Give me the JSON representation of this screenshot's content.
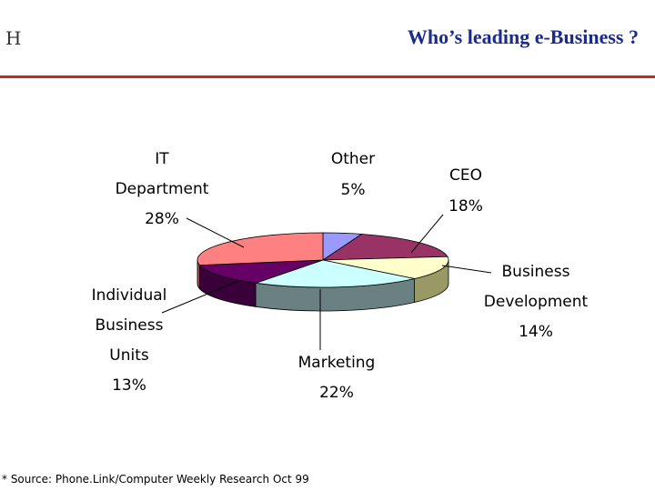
{
  "header": {
    "corner_mark": "H",
    "title": "Who’s leading e-Business ?"
  },
  "footer": {
    "source": "* Source: Phone.Link/Computer Weekly Research Oct 99"
  },
  "chart_data": {
    "type": "pie",
    "title": "Who’s leading e-Business ?",
    "slices": [
      {
        "label": "Other",
        "value": 5,
        "percent_label": "5%",
        "color": "#9999ff",
        "side": "#5c5c99"
      },
      {
        "label": "CEO",
        "value": 18,
        "percent_label": "18%",
        "color": "#993366",
        "side": "#5c1f3d"
      },
      {
        "label": "Business Development",
        "value": 14,
        "percent_label": "14%",
        "color": "#ffffcc",
        "side": "#999966"
      },
      {
        "label": "Marketing",
        "value": 22,
        "percent_label": "22%",
        "color": "#ccffff",
        "side": "#6b8080"
      },
      {
        "label": "Individual Business Units",
        "value": 13,
        "percent_label": "13%",
        "color": "#660066",
        "side": "#3a003a"
      },
      {
        "label": "IT Department",
        "value": 28,
        "percent_label": "28%",
        "color": "#ff8080",
        "side": "#994d4d"
      }
    ],
    "label_lines": [
      [
        "Other",
        "5%"
      ],
      [
        "CEO",
        "18%"
      ],
      [
        "Business",
        "Development",
        "14%"
      ],
      [
        "Marketing",
        "22%"
      ],
      [
        "Individual",
        "Business",
        "Units",
        "13%"
      ],
      [
        "IT",
        "Department",
        "28%"
      ]
    ]
  }
}
